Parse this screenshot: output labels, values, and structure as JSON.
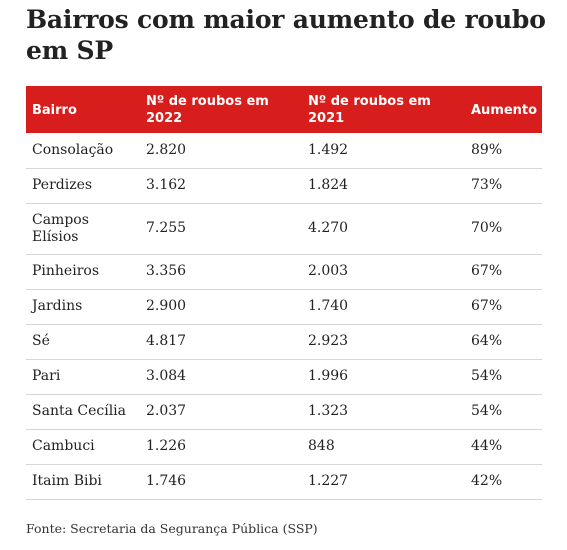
{
  "title": "Bairros com maior aumento de roubo em SP",
  "footer": "Fonte: Secretaria da Segurança Pública (SSP)",
  "colors": {
    "header_bg": "#d81d1d",
    "header_text": "#ffffff",
    "divider": "#d6d6d6"
  },
  "chart_data": {
    "type": "table",
    "title": "Bairros com maior aumento de roubo em SP",
    "columns": [
      "Bairro",
      "Nº de roubos em 2022",
      "Nº de roubos em 2021",
      "Aumento"
    ],
    "rows": [
      [
        "Consolação",
        "2.820",
        "1.492",
        "89%"
      ],
      [
        "Perdizes",
        "3.162",
        "1.824",
        "73%"
      ],
      [
        "Campos Elísios",
        "7.255",
        "4.270",
        "70%"
      ],
      [
        "Pinheiros",
        "3.356",
        "2.003",
        "67%"
      ],
      [
        "Jardins",
        "2.900",
        "1.740",
        "67%"
      ],
      [
        "Sé",
        "4.817",
        "2.923",
        "64%"
      ],
      [
        "Pari",
        "3.084",
        "1.996",
        "54%"
      ],
      [
        "Santa Cecília",
        "2.037",
        "1.323",
        "54%"
      ],
      [
        "Cambuci",
        "1.226",
        "848",
        "44%"
      ],
      [
        "Itaim Bibi",
        "1.746",
        "1.227",
        "42%"
      ]
    ],
    "source": "Fonte: Secretaria da Segurança Pública (SSP)"
  }
}
